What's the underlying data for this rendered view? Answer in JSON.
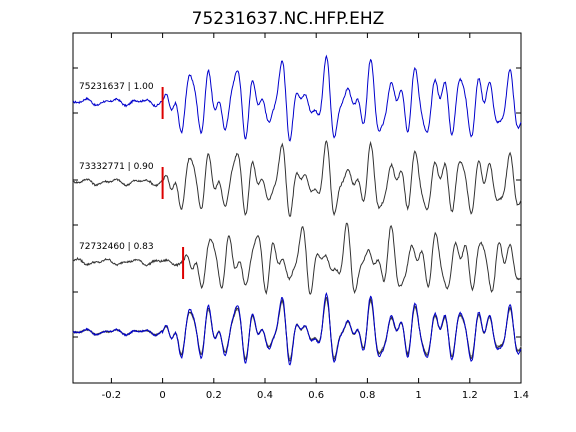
{
  "chart_data": {
    "type": "line",
    "title": "75231637.NC.HFP.EHZ",
    "xlabel": "",
    "ylabel": "",
    "xlim": [
      -0.35,
      1.4
    ],
    "x_ticks": [
      -0.2,
      0,
      0.2,
      0.4,
      0.6,
      0.8,
      1,
      1.2,
      1.4
    ],
    "x_tick_labels": [
      "-0.2",
      "0",
      "0.2",
      "0.4",
      "0.6",
      "0.8",
      "1",
      "1.2",
      "1.4"
    ],
    "grid": false,
    "legend": "none",
    "traces": [
      {
        "label": "75231637 | 1.00",
        "color": "#0000cc",
        "pick_time": 0.0,
        "offset": 0.0,
        "amplitude": 1.0
      },
      {
        "label": "73332771 | 0.90",
        "color": "#333333",
        "pick_time": 0.0,
        "offset": 0.0,
        "amplitude": 0.9
      },
      {
        "label": "72732460 | 0.83",
        "color": "#333333",
        "pick_time": 0.08,
        "offset": 0.08,
        "amplitude": 0.85
      }
    ],
    "stack": {
      "colors": [
        "#888888",
        "#333333",
        "#0000cc"
      ]
    },
    "pick_color": "#dd0000"
  }
}
